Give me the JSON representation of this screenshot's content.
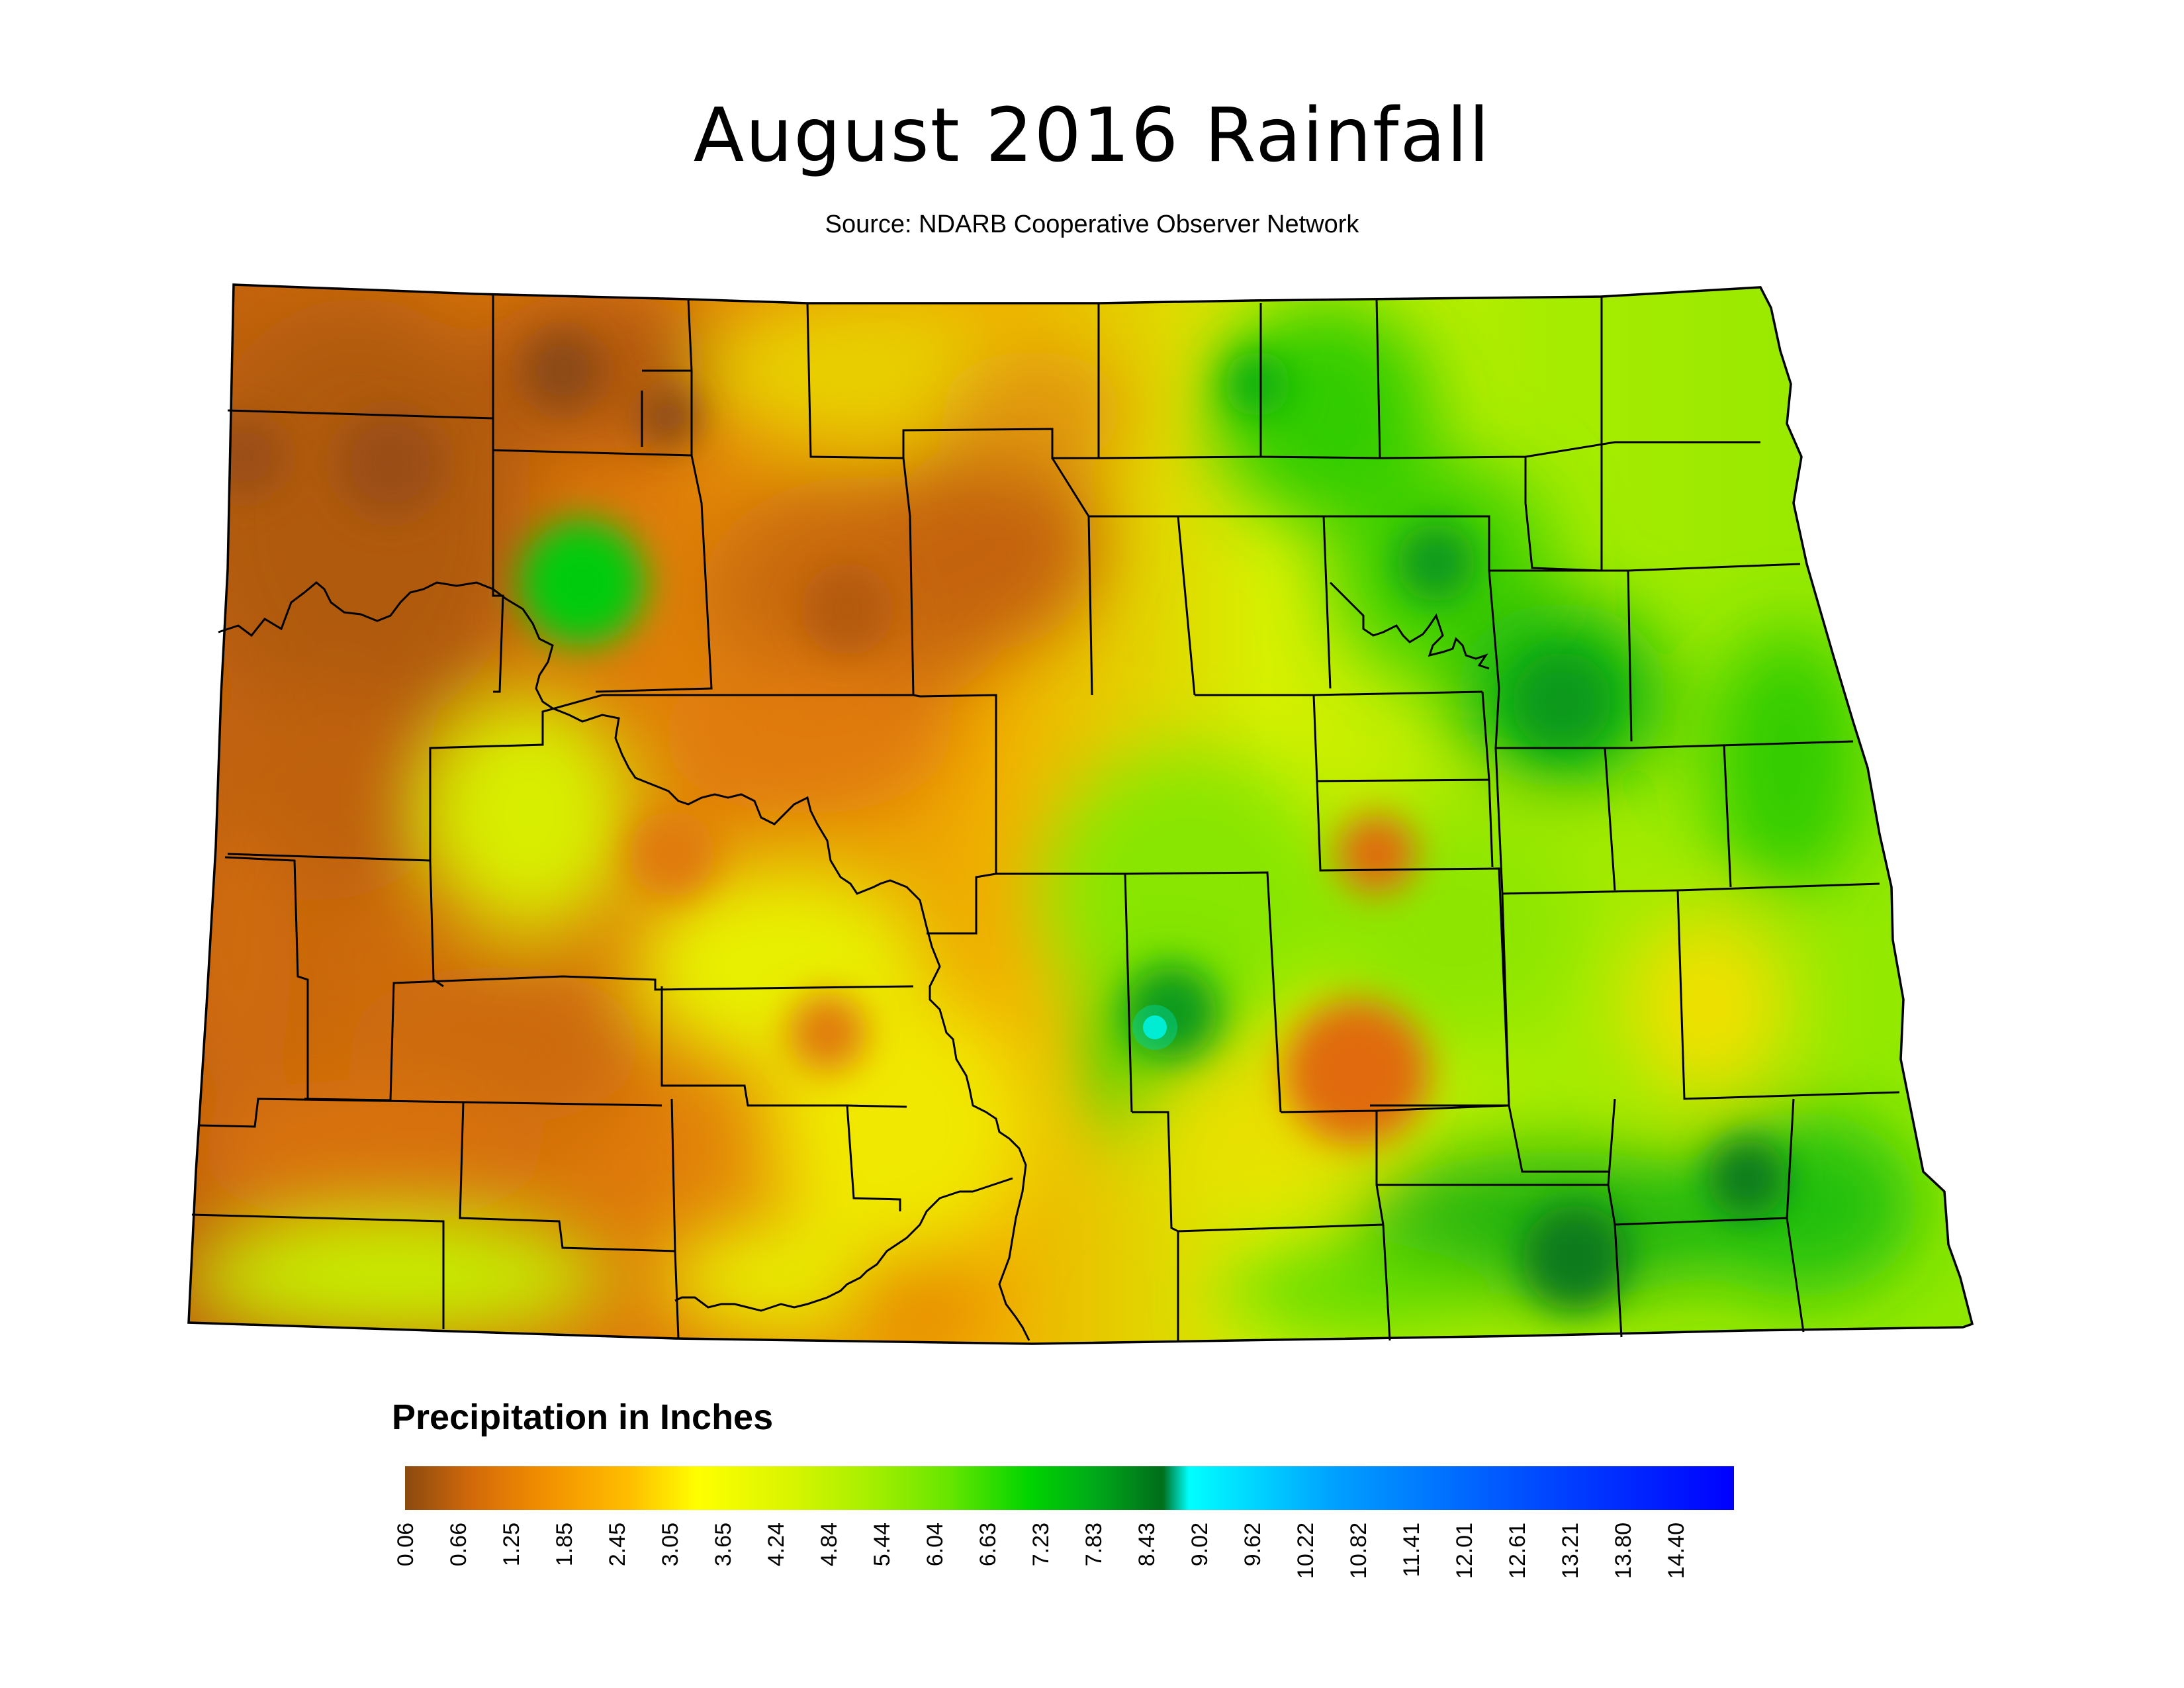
{
  "title": "August 2016 Rainfall",
  "subtitle": "Source: NDARB Cooperative Observer Network",
  "legend": {
    "title": "Precipitation in Inches",
    "ticks": [
      "0.06",
      "0.66",
      "1.25",
      "1.85",
      "2.45",
      "3.05",
      "3.65",
      "4.24",
      "4.84",
      "5.44",
      "6.04",
      "6.63",
      "7.23",
      "7.83",
      "8.43",
      "9.02",
      "9.62",
      "10.22",
      "10.82",
      "11.41",
      "12.01",
      "12.61",
      "13.21",
      "13.80",
      "14.40"
    ],
    "colors": [
      "#8b4a10",
      "#d2690a",
      "#f08c00",
      "#ffbf00",
      "#ffff00",
      "#d9f500",
      "#a6ef00",
      "#66e600",
      "#00d400",
      "#00a81a",
      "#006e1a",
      "#00ffff",
      "#00a0ff",
      "#0050ff",
      "#0000ff"
    ]
  },
  "map_colors": {
    "dry": "#b85a0e",
    "orange": "#e8830a",
    "yellow": "#f2f200",
    "lightgreen": "#a9ec00",
    "green": "#35d400",
    "darkgreen": "#0a8a1a",
    "cyan": "#00ffff",
    "boundary": "#000000"
  }
}
